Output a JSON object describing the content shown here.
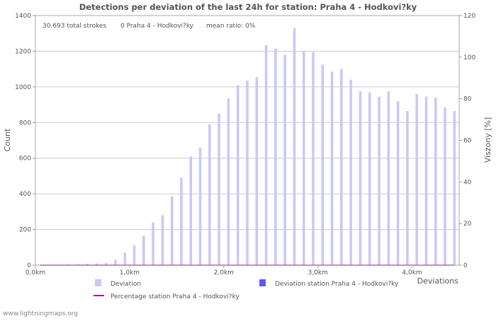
{
  "chart_data": {
    "type": "bar",
    "title": "Detections per deviation of the last 24h for station: Praha 4 - Hodkovi?ky",
    "info": {
      "total": "30.693 total strokes",
      "station": "0 Praha 4 - Hodkovi?ky",
      "ratio": "mean ratio: 0%"
    },
    "xlabel": "Deviations",
    "ylabel": "Count",
    "y2label": "Viszony [%]",
    "xlim": [
      0,
      4.5
    ],
    "ylim": [
      0,
      1400
    ],
    "y2lim": [
      0,
      120
    ],
    "xticks": [
      {
        "value": 0,
        "label": "0,0km"
      },
      {
        "value": 1,
        "label": "1,0km"
      },
      {
        "value": 2,
        "label": "2,0km"
      },
      {
        "value": 3,
        "label": "3,0km"
      },
      {
        "value": 4,
        "label": "4,0km"
      }
    ],
    "yticks": [
      0,
      200,
      400,
      600,
      800,
      1000,
      1200,
      1400
    ],
    "y2ticks": [
      0,
      20,
      40,
      60,
      80,
      100,
      120
    ],
    "bin_width": 0.1,
    "x": [
      0.0,
      0.1,
      0.2,
      0.3,
      0.4,
      0.5,
      0.6,
      0.7,
      0.8,
      0.9,
      1.0,
      1.1,
      1.2,
      1.3,
      1.4,
      1.5,
      1.6,
      1.7,
      1.8,
      1.9,
      2.0,
      2.1,
      2.2,
      2.3,
      2.4,
      2.5,
      2.6,
      2.7,
      2.8,
      2.9,
      3.0,
      3.1,
      3.2,
      3.3,
      3.4,
      3.5,
      3.6,
      3.7,
      3.8,
      3.9,
      4.0,
      4.1,
      4.2,
      4.3,
      4.4
    ],
    "series": [
      {
        "name": "Deviation",
        "color": "#c8c8f8",
        "values": [
          0,
          2,
          3,
          5,
          6,
          8,
          10,
          12,
          30,
          70,
          110,
          165,
          240,
          280,
          385,
          490,
          610,
          660,
          790,
          850,
          935,
          1010,
          1035,
          1055,
          1235,
          1215,
          1180,
          1330,
          1200,
          1195,
          1125,
          1085,
          1100,
          1040,
          975,
          970,
          945,
          975,
          920,
          865,
          960,
          945,
          940,
          885,
          865
        ]
      },
      {
        "name": "Deviation station Praha 4 - Hodkovi?ky",
        "color": "#5b5bf0",
        "values": [
          0,
          0,
          0,
          0,
          0,
          0,
          0,
          0,
          0,
          0,
          0,
          0,
          0,
          0,
          0,
          0,
          0,
          0,
          0,
          0,
          0,
          0,
          0,
          0,
          0,
          0,
          0,
          0,
          0,
          0,
          0,
          0,
          0,
          0,
          0,
          0,
          0,
          0,
          0,
          0,
          0,
          0,
          0,
          0,
          0
        ]
      },
      {
        "name": "Percentage station Praha 4 - Hodkovi?ky",
        "color": "#b000b0",
        "type": "line",
        "values": [
          0,
          0,
          0,
          0,
          0,
          0,
          0,
          0,
          0,
          0,
          0,
          0,
          0,
          0,
          0,
          0,
          0,
          0,
          0,
          0,
          0,
          0,
          0,
          0,
          0,
          0,
          0,
          0,
          0,
          0,
          0,
          0,
          0,
          0,
          0,
          0,
          0,
          0,
          0,
          0,
          0,
          0,
          0,
          0,
          0
        ]
      }
    ],
    "legend": [
      {
        "label": "Deviation",
        "color": "#c8c8f8",
        "kind": "box"
      },
      {
        "label": "Deviation station Praha 4 - Hodkovi?ky",
        "color": "#5b5bf0",
        "kind": "box"
      },
      {
        "label": "Percentage station Praha 4 - Hodkovi?ky",
        "color": "#b000b0",
        "kind": "line"
      }
    ],
    "grid": true
  },
  "footer": {
    "watermark": "www.lightningmaps.org"
  }
}
